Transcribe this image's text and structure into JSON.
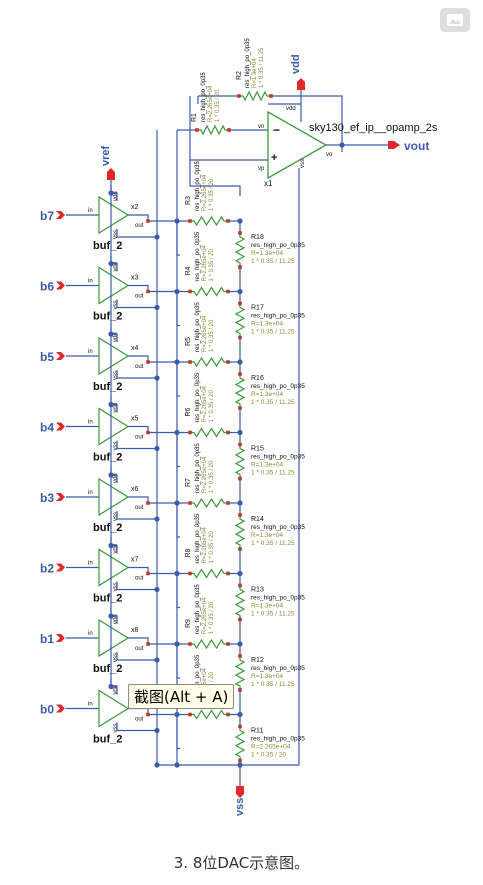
{
  "image_button": {
    "icon": "image-icon"
  },
  "opamp": {
    "name": "x1",
    "cell": "sky130_ef_ip__opamp_2s",
    "plus": "+",
    "minus": "−",
    "pin_vp": "vp",
    "pin_vn": "vn",
    "pin_vo": "vo",
    "pin_vdd": "vdd",
    "pin_vss": "vss"
  },
  "pins": {
    "vdd": "vdd",
    "vout": "vout",
    "vref": "vref",
    "vss": "vss"
  },
  "r2": {
    "name": "R2",
    "type": "res_high_po_0p35",
    "value": "R=1.3e+04",
    "dims": "1 * 0.35 / 11.25"
  },
  "r1": {
    "name": "R1",
    "type": "res_high_po_0p35",
    "value": "R=2.265e+04",
    "dims": "1 * 0.35 / 20"
  },
  "buffers": [
    {
      "bit": "b7",
      "inst": "x2",
      "cell": "buf_2"
    },
    {
      "bit": "b6",
      "inst": "x3",
      "cell": "buf_2"
    },
    {
      "bit": "b5",
      "inst": "x4",
      "cell": "buf_2"
    },
    {
      "bit": "b4",
      "inst": "x5",
      "cell": "buf_2"
    },
    {
      "bit": "b3",
      "inst": "x6",
      "cell": "buf_2"
    },
    {
      "bit": "b2",
      "inst": "x7",
      "cell": "buf_2"
    },
    {
      "bit": "b1",
      "inst": "x8",
      "cell": "buf_2"
    },
    {
      "bit": "b0",
      "inst": "x9",
      "cell": "buf_2"
    }
  ],
  "buf_pins": {
    "in": "in",
    "out": "out",
    "vdd": "vdd",
    "vss": "vss"
  },
  "series_resistors": [
    {
      "name": "R3",
      "type": "res_high_po_0p35",
      "value": "R=2.265e+04",
      "dims": "1 * 0.35 / 20"
    },
    {
      "name": "R4",
      "type": "res_high_po_0p35",
      "value": "R=2.265e+04",
      "dims": "1 * 0.35 / 20"
    },
    {
      "name": "R5",
      "type": "res_high_po_0p35",
      "value": "R=2.265e+04",
      "dims": "1 * 0.35 / 20"
    },
    {
      "name": "R6",
      "type": "res_high_po_0p35",
      "value": "R=2.265e+04",
      "dims": "1 * 0.35 / 20"
    },
    {
      "name": "R7",
      "type": "res_high_po_0p35",
      "value": "R=2.265e+04",
      "dims": "1 * 0.35 / 20"
    },
    {
      "name": "R8",
      "type": "res_high_po_0p35",
      "value": "R=2.265e+04",
      "dims": "1 * 0.35 / 20"
    },
    {
      "name": "R9",
      "type": "res_high_po_0p35",
      "value": "R=2.265e+04",
      "dims": "1 * 0.35 / 20"
    },
    {
      "name": "R10",
      "type": "res_high_po_0p35",
      "value": "R=2.265e+04",
      "dims": "1 * 0.35 / 20"
    }
  ],
  "ladder_resistors": [
    {
      "name": "R18",
      "type": "res_high_po_0p35",
      "value": "R=1.3e+04",
      "dims": "1 * 0.35 / 11.25"
    },
    {
      "name": "R17",
      "type": "res_high_po_0p35",
      "value": "R=1.3e+04",
      "dims": "1 * 0.35 / 11.25"
    },
    {
      "name": "R16",
      "type": "res_high_po_0p35",
      "value": "R=1.3e+04",
      "dims": "1 * 0.35 / 11.25"
    },
    {
      "name": "R15",
      "type": "res_high_po_0p35",
      "value": "R=1.3e+04",
      "dims": "1 * 0.35 / 11.25"
    },
    {
      "name": "R14",
      "type": "res_high_po_0p35",
      "value": "R=1.3e+04",
      "dims": "1 * 0.35 / 11.25"
    },
    {
      "name": "R13",
      "type": "res_high_po_0p35",
      "value": "R=1.3e+04",
      "dims": "1 * 0.35 / 11.25"
    },
    {
      "name": "R12",
      "type": "res_high_po_0p35",
      "value": "R=1.3e+04",
      "dims": "1 * 0.35 / 11.25"
    },
    {
      "name": "R11",
      "type": "res_high_po_0p35",
      "value": "R=2.265e+04",
      "dims": "1 * 0.35 / 20"
    }
  ],
  "tooltip": "截图(Alt + A)",
  "caption": "3. 8位DAC示意图。",
  "colors": {
    "wire": "#3b5bab",
    "label": "#3b5bab",
    "component": "#3c9a3c",
    "text": "#111111",
    "values": "#8a8a3a",
    "pin": "#e02828",
    "junction": "#c0392b"
  }
}
